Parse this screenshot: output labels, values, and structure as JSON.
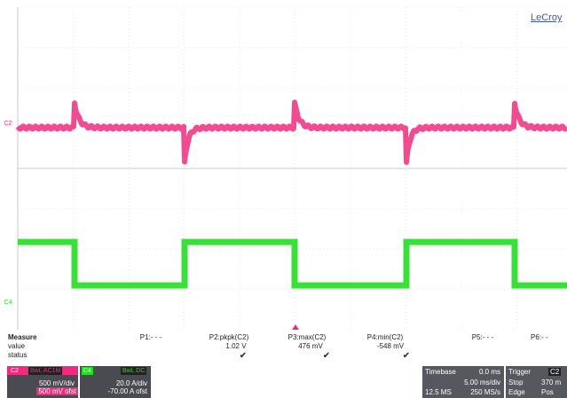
{
  "brand": "LeCroy",
  "channels": [
    {
      "id": "C2",
      "color": "#ee2b7f"
    },
    {
      "id": "C4",
      "color": "#22dd22"
    }
  ],
  "measure": {
    "title": "Measure",
    "row_labels": [
      "value",
      "status"
    ],
    "params": [
      {
        "header": "P1:- - -",
        "value": "",
        "status": ""
      },
      {
        "header": "P2:pkpk(C2)",
        "value": "1.02 V",
        "status": "✔"
      },
      {
        "header": "P3:max(C2)",
        "value": "476 mV",
        "status": "✔"
      },
      {
        "header": "P4:min(C2)",
        "value": "-548 mV",
        "status": "✔"
      },
      {
        "header": "P5:- - -",
        "value": "",
        "status": ""
      },
      {
        "header": "P6:- -",
        "value": "",
        "status": ""
      }
    ]
  },
  "ch_panels": [
    {
      "id": "C2",
      "badge": "BwL AC1M",
      "scale": "500 mV/div",
      "offset": "500 mV ofst",
      "color": "#ee2b7f"
    },
    {
      "id": "C4",
      "badge": "BwL DC",
      "scale": "20.0 A/div",
      "offset": "-70.00 A ofst",
      "color": "#22dd22"
    }
  ],
  "timebase": {
    "label": "Timebase",
    "delay": "0.0 ms",
    "scale": "5.00 ms/div",
    "samples": "12.5 MS",
    "rate": "250 MS/s"
  },
  "trigger": {
    "label": "Trigger",
    "source": "C2",
    "mode": "Stop",
    "level": "370 m",
    "type": "Edge",
    "slope": "Pos"
  }
}
